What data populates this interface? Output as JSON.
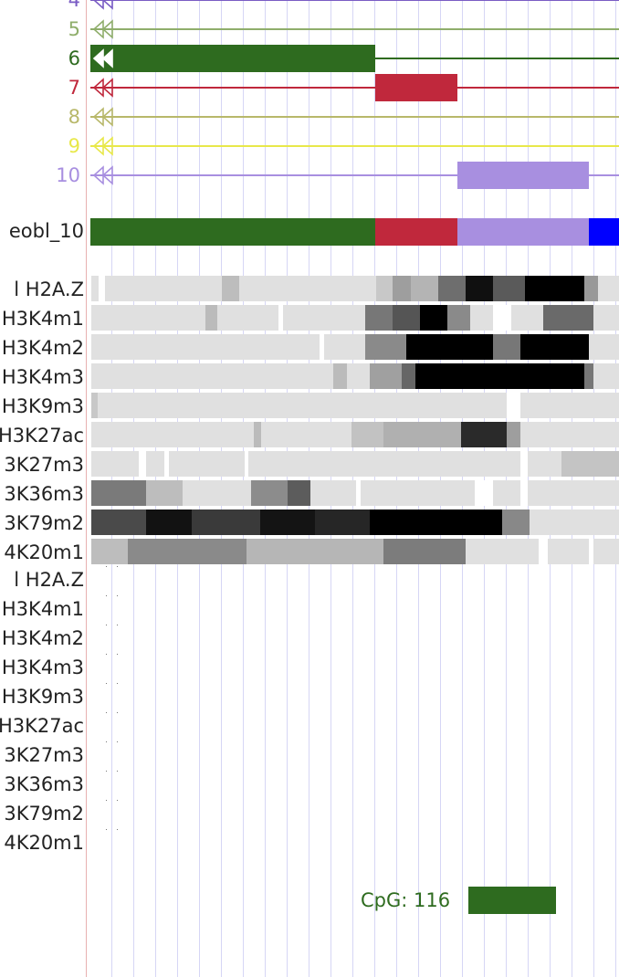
{
  "browser": {
    "chromatin_states": [
      {
        "number": "4",
        "color": "#7a5cc4"
      },
      {
        "number": "5",
        "color": "#8fae6b"
      },
      {
        "number": "6",
        "color": "#2e6b1f"
      },
      {
        "number": "7",
        "color": "#c0283c"
      },
      {
        "number": "8",
        "color": "#b8b86a"
      },
      {
        "number": "9",
        "color": "#e8e84a"
      },
      {
        "number": "10",
        "color": "#a88fe0"
      }
    ],
    "dense_track": {
      "label": "eobl_10"
    },
    "signal_tracks": [
      {
        "label": "l H2A.Z"
      },
      {
        "label": "H3K4m1"
      },
      {
        "label": "H3K4m2"
      },
      {
        "label": "H3K4m3"
      },
      {
        "label": "H3K9m3"
      },
      {
        "label": "H3K27ac"
      },
      {
        "label": "3K27m3"
      },
      {
        "label": "3K36m3"
      },
      {
        "label": "3K79m2"
      },
      {
        "label": "4K20m1"
      }
    ],
    "empty_tracks": [
      {
        "label": "l H2A.Z"
      },
      {
        "label": "H3K4m1"
      },
      {
        "label": "H3K4m2"
      },
      {
        "label": "H3K4m3"
      },
      {
        "label": "H3K9m3"
      },
      {
        "label": "H3K27ac"
      },
      {
        "label": "3K27m3"
      },
      {
        "label": "3K36m3"
      },
      {
        "label": "3K79m2"
      },
      {
        "label": "4K20m1"
      }
    ],
    "cpg": {
      "label": "CpG: 116",
      "color": "#2e6b1f"
    }
  }
}
